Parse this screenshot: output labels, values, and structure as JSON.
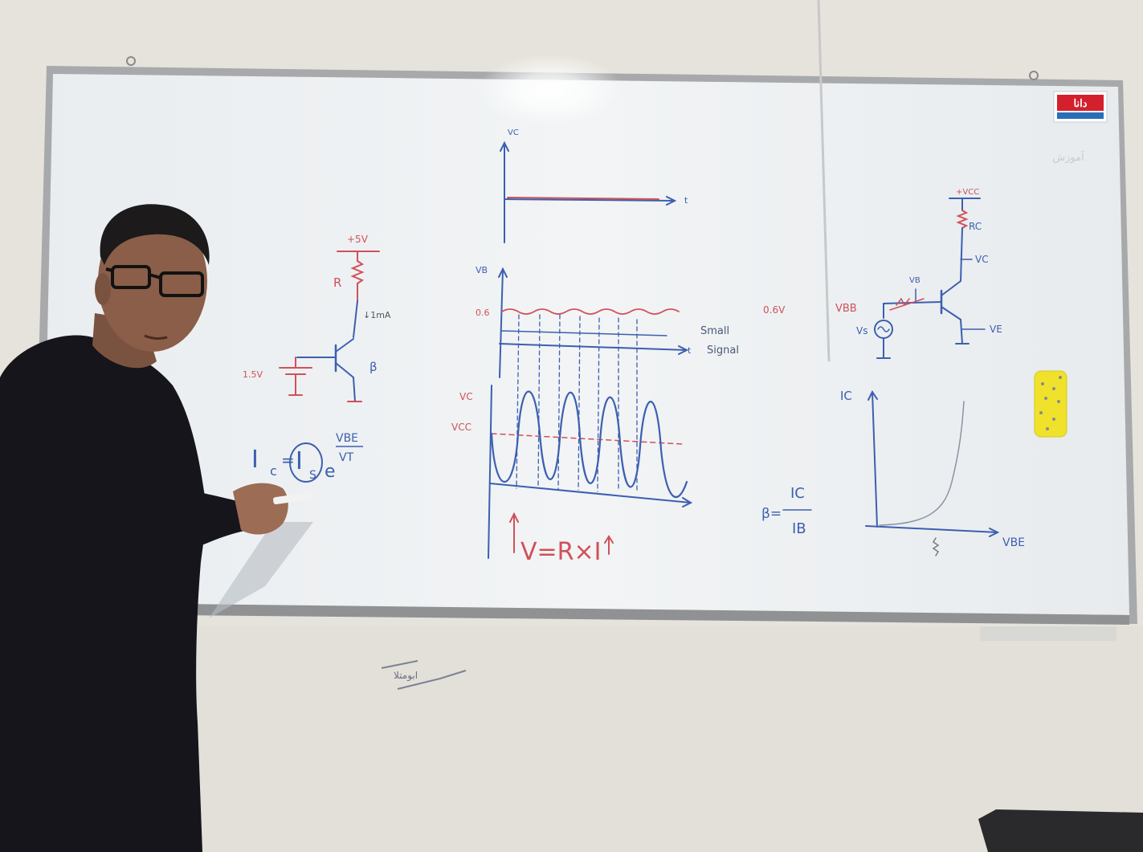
{
  "colors": {
    "wall": "#e8e5de",
    "board": "#eef1f3",
    "frame": "#a7a9ab",
    "marker_blue": "#3c5fb0",
    "marker_red": "#d0505a",
    "shirt": "#15151b",
    "eraser": "#f0e22b"
  },
  "board": {
    "logo_text": "دانا",
    "corner_note": "آموزش"
  },
  "left_circuit": {
    "supply_label": "+5V",
    "resistor_label": "R",
    "current_label": "↓1mA",
    "battery_label": "1.5V",
    "beta_label": "β",
    "eq_ic": "I",
    "eq_ic_sub": "c",
    "eq_eq": "=",
    "eq_is": "I",
    "eq_is_sub": "S",
    "eq_e": "e",
    "eq_exp_num": "VBE",
    "eq_exp_den": "VT"
  },
  "center_graphs": {
    "top_ylabel": "VC",
    "top_xlabel": "t",
    "mid_ylabel": "VB",
    "mid_level": "0.6",
    "mid_xlabel": "t",
    "small_signal_1": "Small",
    "small_signal_2": "Signal",
    "bottom_ylabel": "VC",
    "bottom_level": "VCC",
    "ohms_law": "V=R×I"
  },
  "right_circuit": {
    "vcc_label": "+VCC",
    "rc_label": "RC",
    "vc_label": "VC",
    "vb_label": "VB",
    "vbb_label": "VBB",
    "bias_label": "0.6V",
    "vs_label": "Vs",
    "ve_label": "VE"
  },
  "right_graph": {
    "ylabel": "IC",
    "xlabel": "VBE",
    "beta_lhs": "β=",
    "beta_num": "IC",
    "beta_den": "IB"
  },
  "wall_note": "ابومتلا"
}
